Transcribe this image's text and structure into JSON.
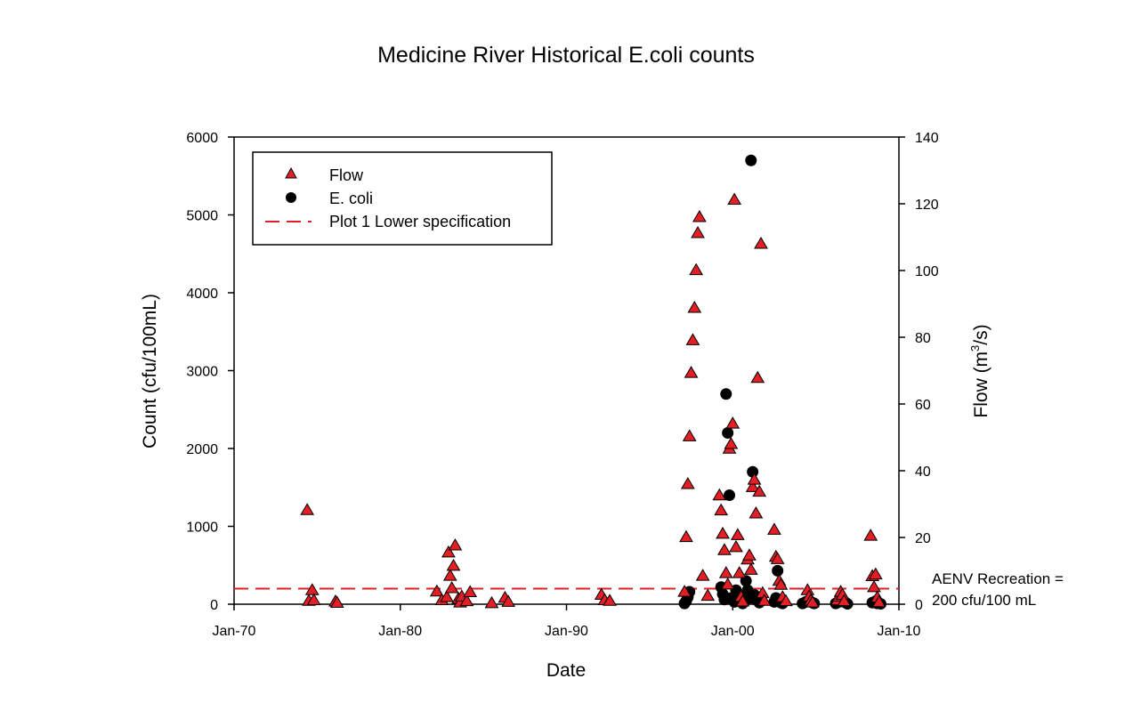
{
  "chart_data": {
    "type": "scatter",
    "title": "Medicine River Historical E.coli counts",
    "xlabel": "Date",
    "ylabel": "Count (cfu/100mL)",
    "y2label_prefix": "Flow (m",
    "y2label_sup": "3",
    "y2label_suffix": "/s)",
    "xlim": [
      1970,
      2010
    ],
    "ylim": [
      0,
      6000
    ],
    "y2lim": [
      0,
      140
    ],
    "x_ticks": [
      {
        "value": 1970,
        "label": "Jan-70"
      },
      {
        "value": 1980,
        "label": "Jan-80"
      },
      {
        "value": 1990,
        "label": "Jan-90"
      },
      {
        "value": 2000,
        "label": "Jan-00"
      },
      {
        "value": 2010,
        "label": "Jan-10"
      }
    ],
    "y_ticks": [
      0,
      1000,
      2000,
      3000,
      4000,
      5000,
      6000
    ],
    "y2_ticks": [
      0,
      20,
      40,
      60,
      80,
      100,
      120,
      140
    ],
    "legend": {
      "placement": "top-left",
      "entries": [
        {
          "name": "Flow",
          "marker": "triangle"
        },
        {
          "name": "E. coli",
          "marker": "circle"
        },
        {
          "name": "Plot 1 Lower specification",
          "marker": "dashed-line"
        }
      ]
    },
    "colors": {
      "flow": "#e31e24",
      "ecoli": "#000000",
      "specification": "#e31e24"
    },
    "specification": {
      "y": 200
    },
    "annotation": {
      "line1": "AENV Recreation =",
      "line2": "200 cfu/100 mL"
    },
    "series": [
      {
        "name": "Flow",
        "axis": "right",
        "marker": "triangle",
        "points": [
          [
            1974.4,
            28.2
          ],
          [
            1974.5,
            1.0
          ],
          [
            1974.7,
            4.2
          ],
          [
            1974.8,
            1.2
          ],
          [
            1976.1,
            0.8
          ],
          [
            1976.2,
            0.4
          ],
          [
            1982.2,
            3.8
          ],
          [
            1982.5,
            1.2
          ],
          [
            1982.8,
            2.1
          ],
          [
            1982.9,
            15.5
          ],
          [
            1983.0,
            8.5
          ],
          [
            1983.1,
            4.8
          ],
          [
            1983.2,
            11.5
          ],
          [
            1983.3,
            17.6
          ],
          [
            1983.5,
            1.6
          ],
          [
            1983.6,
            0.5
          ],
          [
            1983.7,
            2.3
          ],
          [
            1984.0,
            0.9
          ],
          [
            1984.2,
            3.6
          ],
          [
            1985.5,
            0.3
          ],
          [
            1986.3,
            1.9
          ],
          [
            1986.5,
            0.7
          ],
          [
            1992.1,
            2.8
          ],
          [
            1992.3,
            1.2
          ],
          [
            1992.6,
            1.0
          ],
          [
            1997.1,
            3.7
          ],
          [
            1997.2,
            20.1
          ],
          [
            1997.3,
            36.0
          ],
          [
            1997.4,
            50.3
          ],
          [
            1997.5,
            69.3
          ],
          [
            1997.6,
            79.1
          ],
          [
            1997.7,
            88.8
          ],
          [
            1997.8,
            100.1
          ],
          [
            1997.9,
            111.2
          ],
          [
            1998.0,
            116.0
          ],
          [
            1998.2,
            8.5
          ],
          [
            1998.5,
            2.5
          ],
          [
            1999.2,
            32.6
          ],
          [
            1999.3,
            28.1
          ],
          [
            1999.4,
            21.1
          ],
          [
            1999.5,
            16.2
          ],
          [
            1999.6,
            9.3
          ],
          [
            1999.7,
            5.9
          ],
          [
            1999.8,
            46.6
          ],
          [
            1999.9,
            48.0
          ],
          [
            2000.0,
            54.1
          ],
          [
            2000.1,
            121.2
          ],
          [
            2000.2,
            17.1
          ],
          [
            2000.3,
            20.7
          ],
          [
            2000.4,
            9.3
          ],
          [
            2000.5,
            2.2
          ],
          [
            2000.6,
            0.8
          ],
          [
            2000.9,
            13.4
          ],
          [
            2001.0,
            14.6
          ],
          [
            2001.1,
            10.3
          ],
          [
            2001.2,
            35.1
          ],
          [
            2001.3,
            37.3
          ],
          [
            2001.4,
            27.2
          ],
          [
            2001.5,
            67.8
          ],
          [
            2001.6,
            33.7
          ],
          [
            2001.7,
            108.0
          ],
          [
            2001.8,
            3.3
          ],
          [
            2001.9,
            1.0
          ],
          [
            2002.5,
            22.3
          ],
          [
            2002.6,
            14.2
          ],
          [
            2002.7,
            13.5
          ],
          [
            2002.8,
            7.0
          ],
          [
            2002.9,
            5.8
          ],
          [
            2003.0,
            2.1
          ],
          [
            2003.2,
            0.9
          ],
          [
            2004.5,
            4.2
          ],
          [
            2004.6,
            2.3
          ],
          [
            2004.7,
            1.1
          ],
          [
            2004.8,
            0.5
          ],
          [
            2006.3,
            1.2
          ],
          [
            2006.4,
            2.3
          ],
          [
            2006.5,
            3.7
          ],
          [
            2006.6,
            2.8
          ],
          [
            2006.7,
            0.9
          ],
          [
            2008.3,
            20.5
          ],
          [
            2008.4,
            8.4
          ],
          [
            2008.5,
            5.1
          ],
          [
            2008.6,
            8.9
          ],
          [
            2008.7,
            2.0
          ],
          [
            2008.8,
            0.6
          ]
        ]
      },
      {
        "name": "E. coli",
        "axis": "left",
        "marker": "circle",
        "points": [
          [
            1997.1,
            10
          ],
          [
            1997.2,
            40
          ],
          [
            1997.3,
            90
          ],
          [
            1997.4,
            160
          ],
          [
            1999.3,
            220
          ],
          [
            1999.4,
            130
          ],
          [
            1999.5,
            60
          ],
          [
            1999.6,
            2700
          ],
          [
            1999.7,
            2200
          ],
          [
            1999.8,
            1400
          ],
          [
            1999.9,
            80
          ],
          [
            2000.1,
            30
          ],
          [
            2000.2,
            180
          ],
          [
            2000.3,
            120
          ],
          [
            2000.5,
            60
          ],
          [
            2000.6,
            10
          ],
          [
            2000.8,
            300
          ],
          [
            2000.9,
            180
          ],
          [
            2001.0,
            80
          ],
          [
            2001.1,
            5700
          ],
          [
            2001.2,
            1700
          ],
          [
            2001.3,
            120
          ],
          [
            2001.4,
            60
          ],
          [
            2001.6,
            20
          ],
          [
            2002.5,
            30
          ],
          [
            2002.6,
            80
          ],
          [
            2002.7,
            430
          ],
          [
            2002.8,
            60
          ],
          [
            2002.9,
            20
          ],
          [
            2003.0,
            10
          ],
          [
            2004.2,
            10
          ],
          [
            2004.4,
            30
          ],
          [
            2004.6,
            50
          ],
          [
            2004.8,
            20
          ],
          [
            2004.9,
            10
          ],
          [
            2006.2,
            10
          ],
          [
            2006.4,
            30
          ],
          [
            2006.6,
            60
          ],
          [
            2006.8,
            20
          ],
          [
            2006.9,
            5
          ],
          [
            2008.4,
            20
          ],
          [
            2008.6,
            40
          ],
          [
            2008.7,
            10
          ],
          [
            2008.9,
            5
          ]
        ]
      }
    ]
  }
}
